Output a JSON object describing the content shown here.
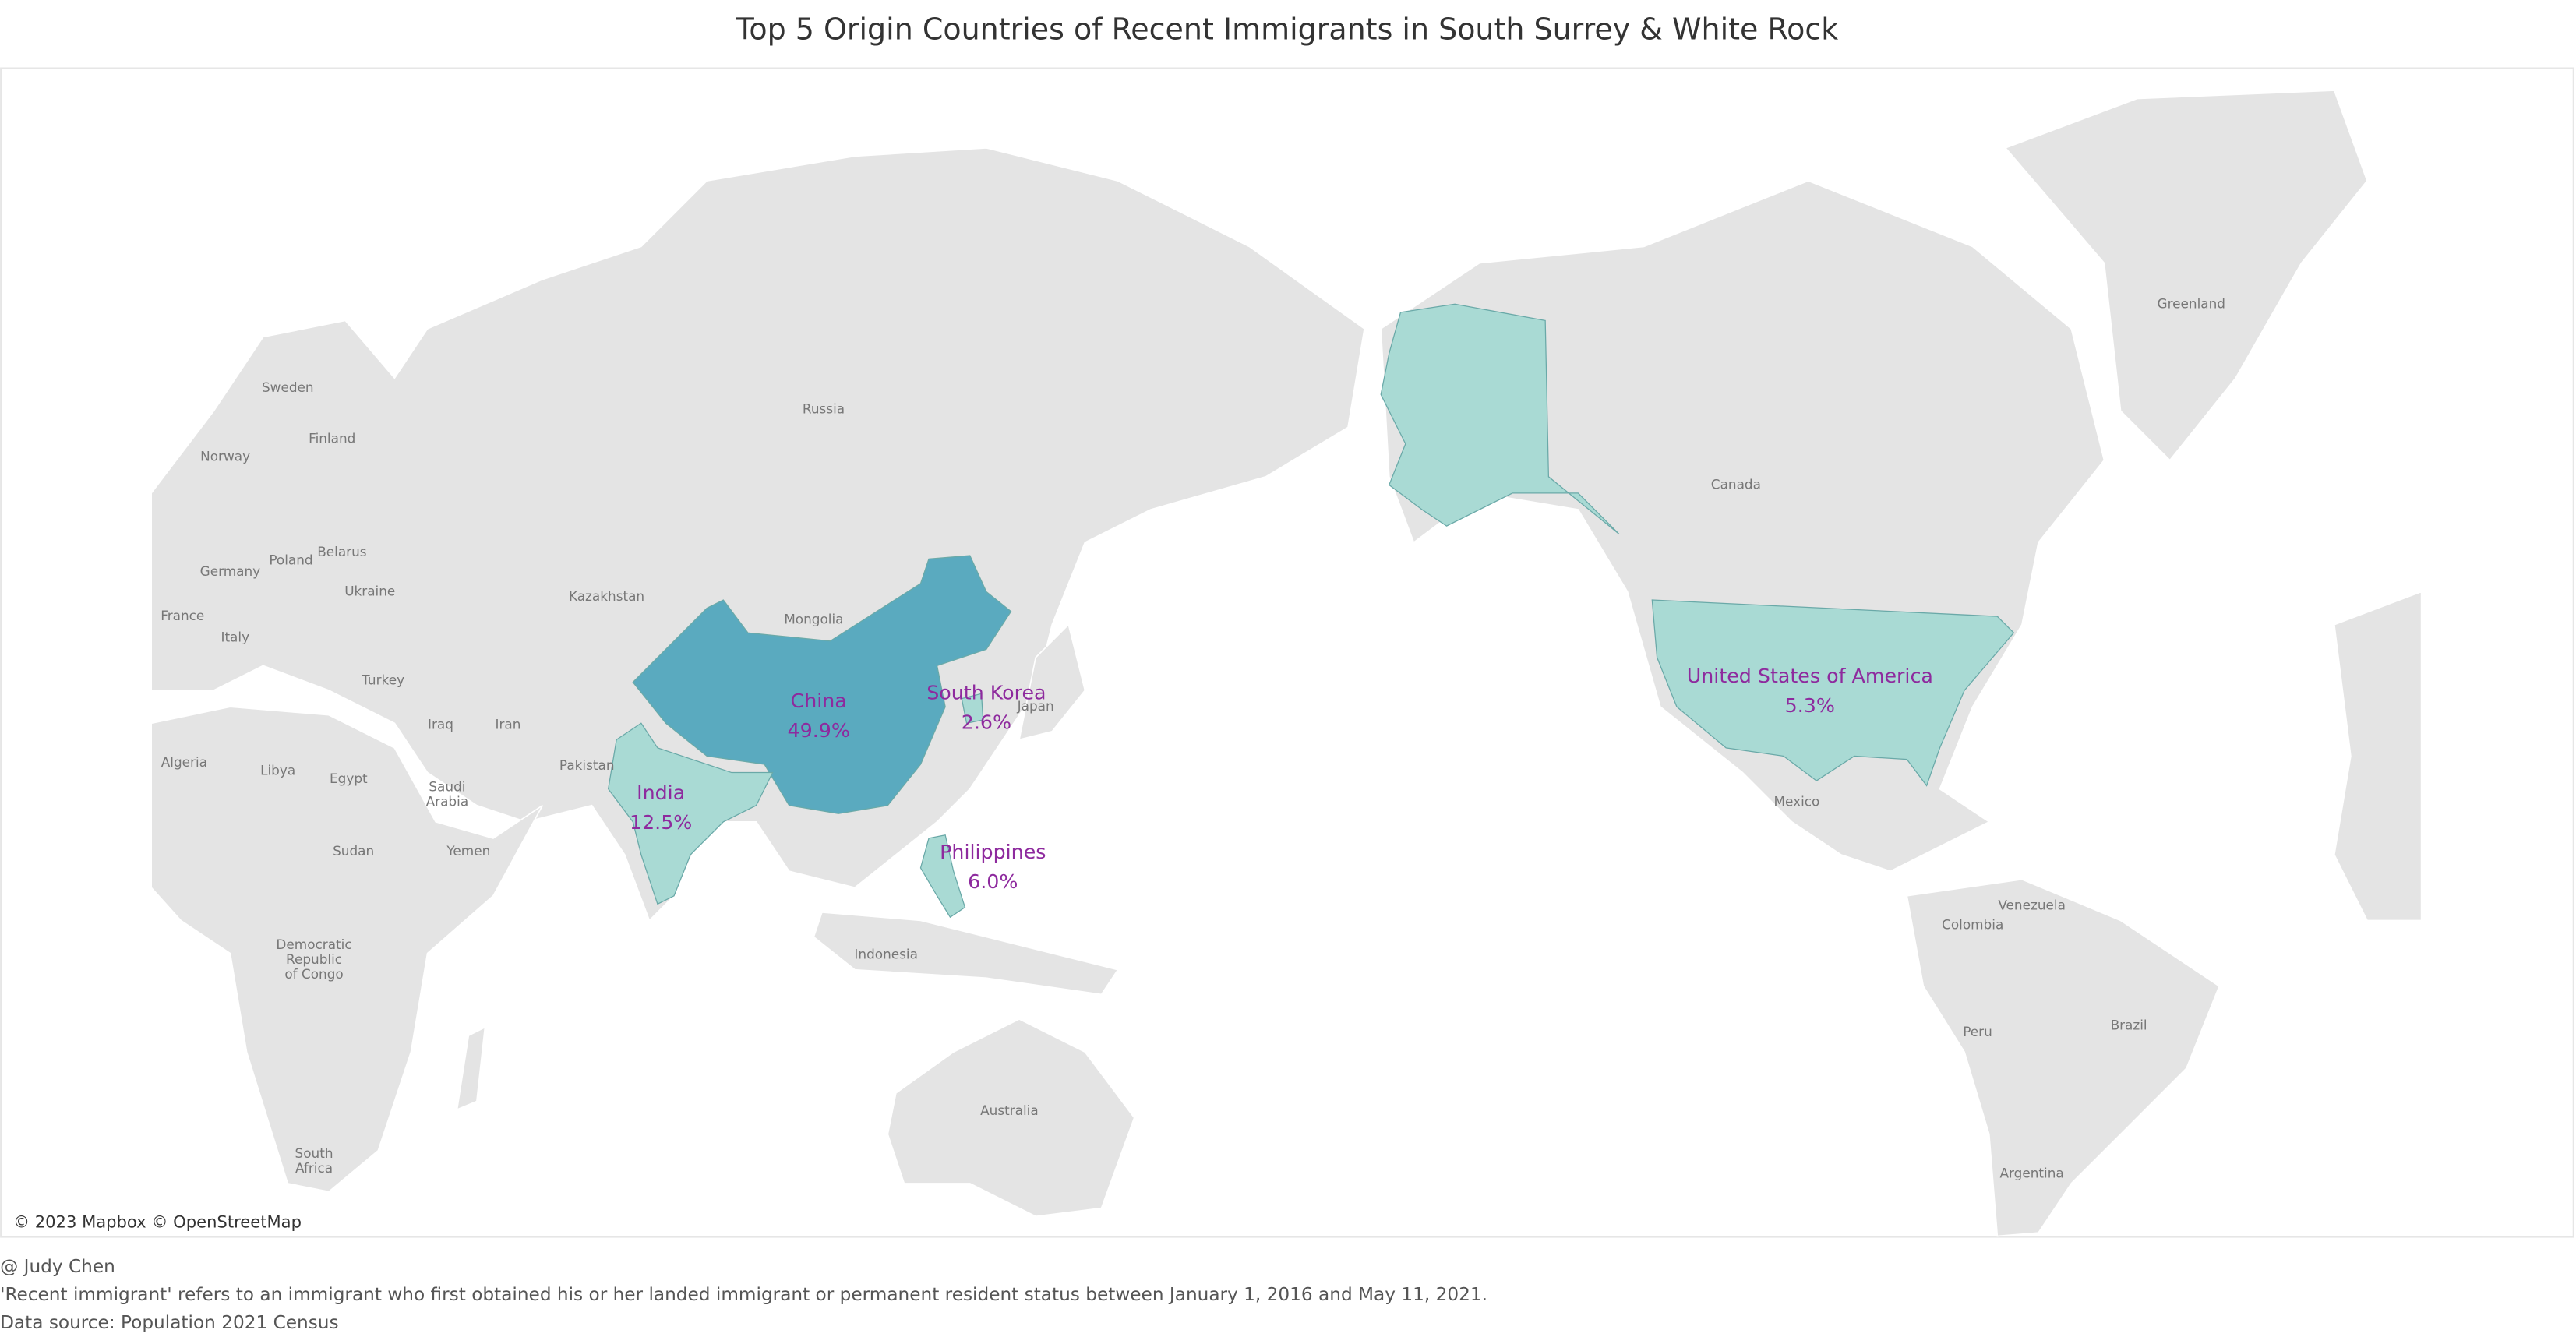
{
  "chart_data": {
    "type": "choropleth",
    "title": "Top 5 Origin Countries of Recent Immigrants in South Surrey & White Rock",
    "categories": [
      "China",
      "India",
      "Philippines",
      "United States of America",
      "South Korea"
    ],
    "values": [
      49.9,
      12.5,
      6.0,
      5.3,
      2.6
    ],
    "value_labels": [
      "49.9%",
      "12.5%",
      "6.0%",
      "5.3%",
      "2.6%"
    ],
    "colors": [
      "#5aaabf",
      "#a9dad4",
      "#a9dad4",
      "#a9dad4",
      "#a9dad4"
    ],
    "label_color": "#8e2a9e",
    "map_labels": [
      [
        "Russia"
      ],
      [
        "Canada"
      ],
      [
        "Greenland"
      ],
      [
        "Sweden"
      ],
      [
        "Finland"
      ],
      [
        "Norway"
      ],
      [
        "Poland"
      ],
      [
        "Belarus"
      ],
      [
        "Germany"
      ],
      [
        "Ukraine"
      ],
      [
        "France"
      ],
      [
        "Italy"
      ],
      [
        "Kazakhstan"
      ],
      [
        "Mongolia"
      ],
      [
        "Turkey"
      ],
      [
        "Iraq"
      ],
      [
        "Iran"
      ],
      [
        "Pakistan"
      ],
      [
        "Japan"
      ],
      [
        "Algeria"
      ],
      [
        "Libya"
      ],
      [
        "Egypt"
      ],
      [
        "Saudi",
        "Arabia"
      ],
      [
        "Yemen"
      ],
      [
        "Sudan"
      ],
      [
        "Democratic",
        "Republic",
        "of Congo"
      ],
      [
        "Indonesia"
      ],
      [
        "Australia"
      ],
      [
        "South",
        "Africa"
      ],
      [
        "Mexico"
      ],
      [
        "Venezuela"
      ],
      [
        "Colombia"
      ],
      [
        "Peru"
      ],
      [
        "Brazil"
      ],
      [
        "Argentina"
      ]
    ],
    "attribution": "© 2023 Mapbox © OpenStreetMap"
  },
  "footer": {
    "author": "@ Judy Chen",
    "note": "'Recent immigrant' refers to an immigrant who first obtained his or her landed immigrant or permanent resident status between January 1, 2016 and May 11, 2021.",
    "source": "Data source: Population 2021 Census"
  }
}
